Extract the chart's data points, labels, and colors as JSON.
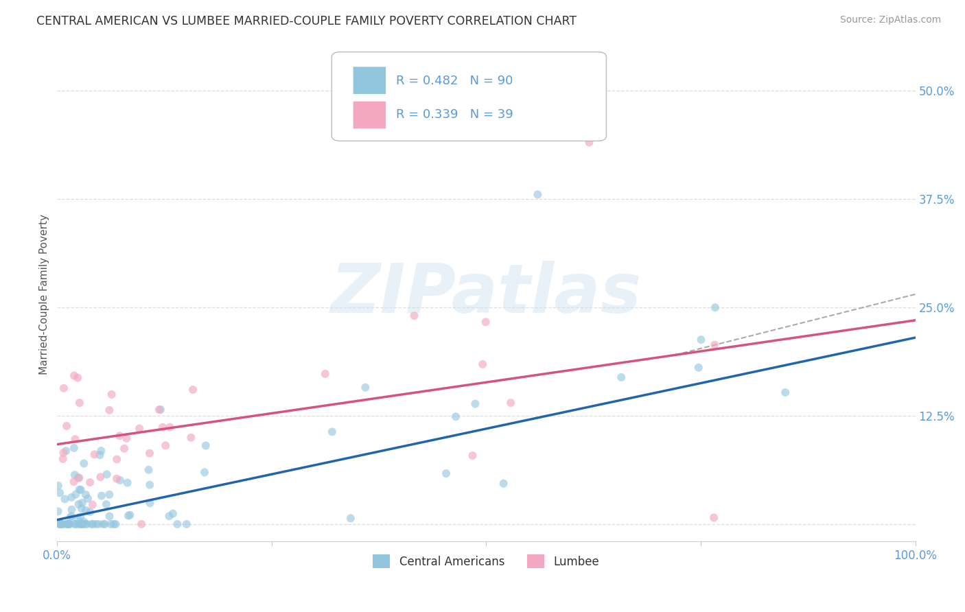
{
  "title": "CENTRAL AMERICAN VS LUMBEE MARRIED-COUPLE FAMILY POVERTY CORRELATION CHART",
  "source": "Source: ZipAtlas.com",
  "ylabel": "Married-Couple Family Poverty",
  "xlim": [
    0.0,
    1.0
  ],
  "ylim": [
    -0.02,
    0.55
  ],
  "yticks": [
    0.0,
    0.125,
    0.25,
    0.375,
    0.5
  ],
  "yticklabels": [
    "",
    "12.5%",
    "25.0%",
    "37.5%",
    "50.0%"
  ],
  "xticks": [
    0.0,
    0.25,
    0.5,
    0.75,
    1.0
  ],
  "xticklabels": [
    "0.0%",
    "",
    "",
    "",
    "100.0%"
  ],
  "central_R": 0.482,
  "central_N": 90,
  "lumbee_R": 0.339,
  "lumbee_N": 39,
  "central_color": "#92c5de",
  "lumbee_color": "#f4a8c0",
  "central_line_color": "#2166ac",
  "lumbee_line_color": "#d6537a",
  "dash_color": "#aaaaaa",
  "central_alpha": 0.6,
  "lumbee_alpha": 0.65,
  "marker_size": 75,
  "watermark_text": "ZIPatlas",
  "background_color": "#ffffff",
  "grid_color": "#dddddd",
  "legend_label_1": "Central Americans",
  "legend_label_2": "Lumbee",
  "tick_color": "#5b9bd5",
  "title_color": "#333333",
  "source_color": "#999999",
  "ylabel_color": "#555555",
  "blue_line_x0": 0.0,
  "blue_line_y0": 0.005,
  "blue_line_x1": 1.0,
  "blue_line_y1": 0.215,
  "pink_line_x0": 0.0,
  "pink_line_y0": 0.092,
  "pink_line_x1": 1.0,
  "pink_line_y1": 0.235,
  "dash_line_x0": 0.72,
  "dash_line_y0": 0.195,
  "dash_line_x1": 1.0,
  "dash_line_y1": 0.265
}
